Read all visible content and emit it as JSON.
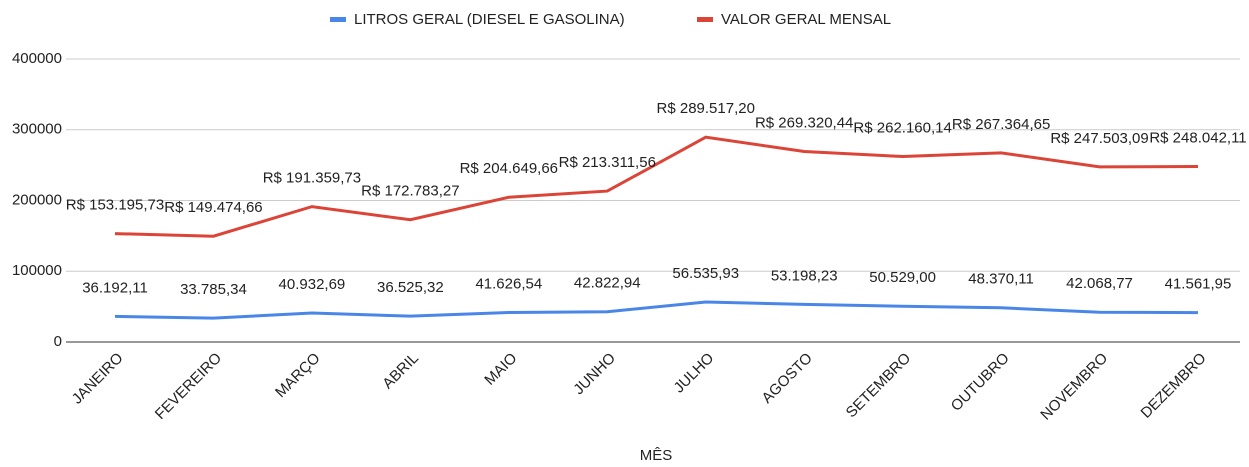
{
  "chart_data": {
    "type": "line",
    "x_label": "MÊS",
    "categories": [
      "JANEIRO",
      "FEVEREIRO",
      "MARÇO",
      "ABRIL",
      "MAIO",
      "JUNHO",
      "JULHO",
      "AGOSTO",
      "SETEMBRO",
      "OUTUBRO",
      "NOVEMBRO",
      "DEZEMBRO"
    ],
    "series": [
      {
        "name": "LITROS GERAL (DIESEL E GASOLINA)",
        "color": "#4a86e8",
        "values": [
          36192.11,
          33785.34,
          40932.69,
          36525.32,
          41626.54,
          42822.94,
          56535.93,
          53198.23,
          50529.0,
          48370.11,
          42068.77,
          41561.95
        ],
        "value_labels": [
          "36.192,11",
          "33.785,34",
          "40.932,69",
          "36.525,32",
          "41.626,54",
          "42.822,94",
          "56.535,93",
          "53.198,23",
          "50.529,00",
          "48.370,11",
          "42.068,77",
          "41.561,95"
        ]
      },
      {
        "name": "VALOR GERAL MENSAL",
        "color": "#db4437",
        "values": [
          153195.73,
          149474.66,
          191359.73,
          172783.27,
          204649.66,
          213311.56,
          289517.2,
          269320.44,
          262160.14,
          267364.65,
          247503.09,
          248042.11
        ],
        "value_labels": [
          "R$ 153.195,73",
          "R$ 149.474,66",
          "R$ 191.359,73",
          "R$ 172.783,27",
          "R$ 204.649,66",
          "R$ 213.311,56",
          "R$ 289.517,20",
          "R$ 269.320,44",
          "R$ 262.160,14",
          "R$ 267.364,65",
          "R$ 247.503,09",
          "R$ 248.042,11"
        ]
      }
    ],
    "ylim": [
      0,
      400000
    ],
    "yticks": [
      0,
      100000,
      200000,
      300000,
      400000
    ],
    "grid": true,
    "legend": "top"
  }
}
